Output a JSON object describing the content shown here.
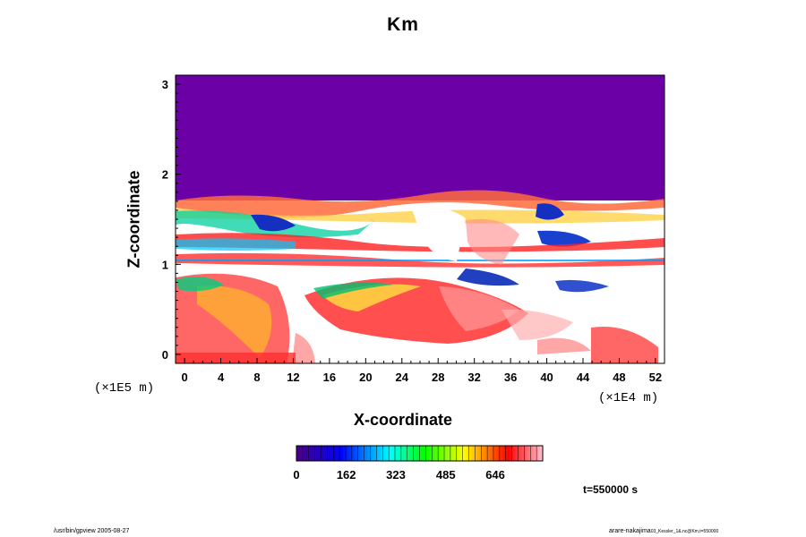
{
  "chart_data": {
    "type": "heatmap",
    "title": "Km",
    "xlabel": "X-coordinate",
    "ylabel": "Z-coordinate",
    "x_unit_left": "(×1E5 m)",
    "x_unit_right": "(×1E4 m)",
    "xlim": [
      -1,
      53
    ],
    "ylim": [
      -0.1,
      3.1
    ],
    "x_ticks": [
      "0",
      "4",
      "8",
      "12",
      "16",
      "20",
      "24",
      "28",
      "32",
      "36",
      "40",
      "44",
      "48",
      "52"
    ],
    "y_ticks": [
      "0",
      "1",
      "2",
      "3"
    ],
    "colorbar": {
      "ticks": [
        "0",
        "162",
        "323",
        "485",
        "646"
      ],
      "range": [
        0,
        800
      ],
      "colormap": [
        "#4b0082",
        "#0000ff",
        "#00ffff",
        "#00ff00",
        "#ffff00",
        "#ff0000",
        "#ffc0cb"
      ]
    },
    "regions": [
      {
        "name": "upper-uniform",
        "z_from": 1.72,
        "z_to": 3.1,
        "value": 0
      },
      {
        "name": "turbulent-band",
        "z_from": 0.95,
        "z_to": 1.72,
        "value": "mixed 0-800"
      },
      {
        "name": "lower-layer",
        "z_from": -0.1,
        "z_to": 0.95,
        "value": "mixed 0-800"
      }
    ],
    "colors": {
      "uniform_region": "#6a00a6",
      "frame": "#000000"
    }
  },
  "time_label": "t=550000 s",
  "footer_left": "/usr/bin/gpview 2005-08-27",
  "footer_right_main": "arare-nakajima",
  "footer_right_small": "03_Kessler_1&.nc@Km,t=550000"
}
